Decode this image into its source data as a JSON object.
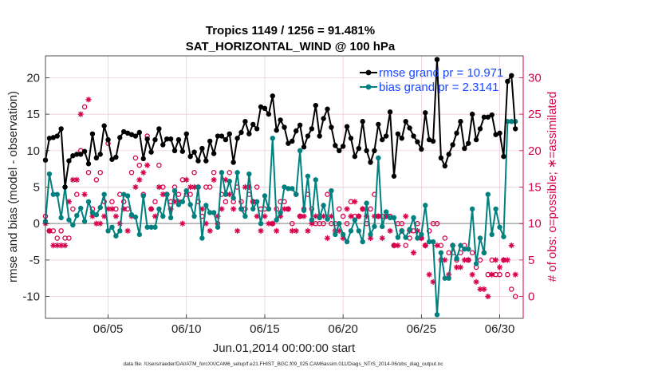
{
  "chart_data": {
    "type": "line",
    "title": "Tropics 1149 / 1256 = 91.481%",
    "subtitle": "SAT_HORIZONTAL_WIND @ 100 hPa",
    "xlabel": "Jun.01,2014 00:00:00 start",
    "ylabel": "rmse and bias (model - observation)",
    "y2label": "# of obs: o=possible; ∗=assimilated",
    "footnote": "data file: /Users/raeder/DAI/ATM_forcXX/CAM6_setup/f.e21.FHIST_BGC.f09_025.CAM6assim.011/Diags_NTrS_2014-06/obs_diag_output.nc",
    "xlim": [
      1,
      31.5
    ],
    "ylim": [
      -13,
      23
    ],
    "y2lim": [
      -3,
      33
    ],
    "xticks": [
      5,
      10,
      15,
      20,
      25,
      30
    ],
    "xtick_labels": [
      "06/05",
      "06/10",
      "06/15",
      "06/20",
      "06/25",
      "06/30"
    ],
    "yticks": [
      -10,
      -5,
      0,
      5,
      10,
      15,
      20
    ],
    "ytick_labels": [
      "-10",
      "-5",
      "0",
      "5",
      "10",
      "15",
      "20"
    ],
    "y2ticks": [
      0,
      5,
      10,
      15,
      20,
      25,
      30
    ],
    "y2tick_labels": [
      "0",
      "5",
      "10",
      "15",
      "20",
      "25",
      "30"
    ],
    "grid": true,
    "legend_position": "top-right",
    "colors": {
      "rmse": "#000000",
      "bias": "#00807f",
      "obs": "#d6004d",
      "zero_line": "#b0b0b0",
      "grid": "#e9c6d4",
      "right_axis": "#d6004d",
      "legend_text": "#1a46ff"
    },
    "series": [
      {
        "name": "rmse",
        "label": "rmse grand pr = 10.971",
        "x": [
          1.0,
          1.25,
          1.5,
          1.75,
          2.0,
          2.25,
          2.5,
          2.75,
          3.0,
          3.25,
          3.5,
          3.75,
          4.0,
          4.25,
          4.5,
          4.75,
          5.0,
          5.25,
          5.5,
          5.75,
          6.0,
          6.25,
          6.5,
          6.75,
          7.0,
          7.25,
          7.5,
          7.75,
          8.0,
          8.25,
          8.5,
          8.75,
          9.0,
          9.25,
          9.5,
          9.75,
          10.0,
          10.25,
          10.5,
          10.75,
          11.0,
          11.25,
          11.5,
          11.75,
          12.0,
          12.25,
          12.5,
          12.75,
          13.0,
          13.25,
          13.5,
          13.75,
          14.0,
          14.25,
          14.5,
          14.75,
          15.0,
          15.25,
          15.5,
          15.75,
          16.0,
          16.25,
          16.5,
          16.75,
          17.0,
          17.25,
          17.5,
          17.75,
          18.0,
          18.25,
          18.5,
          18.75,
          19.0,
          19.25,
          19.5,
          19.75,
          20.0,
          20.25,
          20.5,
          20.75,
          21.0,
          21.25,
          21.5,
          21.75,
          22.0,
          22.25,
          22.5,
          22.75,
          23.0,
          23.25,
          23.5,
          23.75,
          24.0,
          24.25,
          24.5,
          24.75,
          25.0,
          25.25,
          25.5,
          25.75,
          26.0,
          26.25,
          26.5,
          26.75,
          27.0,
          27.25,
          27.5,
          27.75,
          28.0,
          28.25,
          28.5,
          28.75,
          29.0,
          29.25,
          29.5,
          29.75,
          30.0,
          30.25,
          30.5,
          30.75,
          31.0
        ],
        "values": [
          8.7,
          11.7,
          11.8,
          12.0,
          13.0,
          5.0,
          8.6,
          9.3,
          9.5,
          9.5,
          9.9,
          8.2,
          12.3,
          9.0,
          9.5,
          13.4,
          11.5,
          8.8,
          9.1,
          11.8,
          12.6,
          12.4,
          12.2,
          12.0,
          12.5,
          8.9,
          11.6,
          9.8,
          11.5,
          13.0,
          10.8,
          11.6,
          11.6,
          10.0,
          11.5,
          9.9,
          12.3,
          9.2,
          9.8,
          8.6,
          10.3,
          8.6,
          11.3,
          9.6,
          12.0,
          12.0,
          11.5,
          12.3,
          8.4,
          11.7,
          12.5,
          14.0,
          12.3,
          13.6,
          13.0,
          16.0,
          15.8,
          15.0,
          17.5,
          12.8,
          14.2,
          13.2,
          11.0,
          11.3,
          12.7,
          13.5,
          10.5,
          12.0,
          13.0,
          16.2,
          12.0,
          14.4,
          15.7,
          13.2,
          10.7,
          10.0,
          10.6,
          13.3,
          11.7,
          9.2,
          10.3,
          14.0,
          10.0,
          8.4,
          10.0,
          13.6,
          11.5,
          12.0,
          15.3,
          6.5,
          12.3,
          11.7,
          14.0,
          13.1,
          12.0,
          11.2,
          10.2,
          15.2,
          11.5,
          11.3,
          22.5,
          9.0,
          7.9,
          9.5,
          10.8,
          12.4,
          14.0,
          10.3,
          11.0,
          15.0,
          11.5,
          13.0,
          14.6,
          14.6,
          14.9,
          12.2,
          12.4,
          9.2,
          19.5,
          20.3,
          13.0
        ],
        "drawn_count": 120
      },
      {
        "name": "bias",
        "label": "bias grand pr = 2.3141",
        "x": [
          1.0,
          1.25,
          1.5,
          1.75,
          2.0,
          2.25,
          2.5,
          2.75,
          3.0,
          3.25,
          3.5,
          3.75,
          4.0,
          4.25,
          4.5,
          4.75,
          5.0,
          5.25,
          5.5,
          5.75,
          6.0,
          6.25,
          6.5,
          6.75,
          7.0,
          7.25,
          7.5,
          7.75,
          8.0,
          8.25,
          8.5,
          8.75,
          9.0,
          9.25,
          9.5,
          9.75,
          10.0,
          10.25,
          10.5,
          10.75,
          11.0,
          11.25,
          11.5,
          11.75,
          12.0,
          12.25,
          12.5,
          12.75,
          13.0,
          13.25,
          13.5,
          13.75,
          14.0,
          14.25,
          14.5,
          14.75,
          15.0,
          15.25,
          15.5,
          15.75,
          16.0,
          16.25,
          16.5,
          16.75,
          17.0,
          17.25,
          17.5,
          17.75,
          18.0,
          18.25,
          18.5,
          18.75,
          19.0,
          19.25,
          19.5,
          19.75,
          20.0,
          20.25,
          20.5,
          20.75,
          21.0,
          21.25,
          21.5,
          21.75,
          22.0,
          22.25,
          22.5,
          22.75,
          23.0,
          23.25,
          23.5,
          23.75,
          24.0,
          24.25,
          24.5,
          24.75,
          25.0,
          25.25,
          25.5,
          25.75,
          26.0,
          26.25,
          26.5,
          26.75,
          27.0,
          27.25,
          27.5,
          27.75,
          28.0,
          28.25,
          28.5,
          28.75,
          29.0,
          29.25,
          29.5,
          29.75,
          30.0,
          30.25,
          30.5,
          30.75,
          31.0
        ],
        "values": [
          0.3,
          6.8,
          4.0,
          4.0,
          0.8,
          5.0,
          0.5,
          -0.2,
          1.1,
          2.1,
          0.3,
          3.0,
          1.5,
          1.2,
          2.2,
          4.0,
          -1.0,
          -0.5,
          -1.7,
          -1.0,
          4.0,
          3.8,
          1.2,
          0.9,
          -1.5,
          3.8,
          -0.5,
          -0.5,
          -0.5,
          2.0,
          1.0,
          4.0,
          0.8,
          4.5,
          2.6,
          3.0,
          4.5,
          2.6,
          1.0,
          5.0,
          -2.0,
          2.5,
          1.5,
          1.5,
          -0.5,
          7.0,
          4.0,
          5.8,
          3.5,
          7.0,
          2.0,
          1.0,
          6.8,
          2.0,
          3.0,
          0.0,
          3.8,
          2.0,
          11.7,
          0.5,
          1.5,
          5.0,
          4.8,
          4.8,
          4.0,
          10.0,
          1.8,
          6.5,
          0.5,
          6.0,
          0.8,
          2.5,
          0.6,
          4.5,
          -1.5,
          0.0,
          -1.5,
          -2.5,
          -1.0,
          0.5,
          -1.0,
          -2.5,
          2.8,
          -1.5,
          -0.4,
          9.0,
          -0.4,
          1.6,
          0.8,
          0.8,
          -1.9,
          -1.0,
          -1.9,
          -0.8,
          0.8,
          -2.0,
          -1.5,
          2.5,
          -2.5,
          -2.5,
          -12.5,
          -4.0,
          -7.5,
          -7.5,
          -3.0,
          -4.8,
          -3.0,
          -3.5,
          -3.5,
          2.0,
          -5.5,
          -2.0,
          -4.0,
          4.0,
          -1.5,
          2.0,
          -0.5,
          -1.8,
          14.0,
          14.0,
          14.0
        ],
        "drawn_count": 118
      }
    ],
    "obs_possible": {
      "x": [
        1.0,
        1.25,
        1.5,
        1.75,
        2.0,
        2.25,
        2.5,
        2.75,
        3.0,
        3.25,
        3.5,
        3.75,
        4.0,
        4.25,
        4.5,
        4.75,
        5.0,
        5.25,
        5.5,
        5.75,
        6.0,
        6.25,
        6.5,
        6.75,
        7.0,
        7.25,
        7.5,
        7.75,
        8.0,
        8.25,
        8.5,
        8.75,
        9.0,
        9.25,
        9.5,
        9.75,
        10.0,
        10.25,
        10.5,
        10.75,
        11.0,
        11.25,
        11.5,
        11.75,
        12.0,
        12.25,
        12.5,
        12.75,
        13.0,
        13.25,
        13.5,
        13.75,
        14.0,
        14.25,
        14.5,
        14.75,
        15.0,
        15.25,
        15.5,
        15.75,
        16.0,
        16.25,
        16.5,
        16.75,
        17.0,
        17.25,
        17.5,
        17.75,
        18.0,
        18.25,
        18.5,
        18.75,
        19.0,
        19.25,
        19.5,
        19.75,
        20.0,
        20.25,
        20.5,
        20.75,
        21.0,
        21.25,
        21.5,
        21.75,
        22.0,
        22.25,
        22.5,
        22.75,
        23.0,
        23.25,
        23.5,
        23.75,
        24.0,
        24.25,
        24.5,
        24.75,
        25.0,
        25.25,
        25.5,
        25.75,
        26.0,
        26.25,
        26.5,
        26.75,
        27.0,
        27.25,
        27.5,
        27.75,
        28.0,
        28.25,
        28.5,
        28.75,
        29.0,
        29.25,
        29.5,
        29.75,
        30.0,
        30.25,
        30.5,
        30.75,
        31.0
      ],
      "values": [
        11,
        9,
        9,
        8,
        9,
        8,
        8,
        12,
        14,
        20,
        26,
        17,
        12,
        16,
        17,
        13,
        21,
        13,
        12,
        14,
        13,
        12,
        17,
        19,
        18,
        14,
        22,
        12,
        13,
        18,
        15,
        14,
        13,
        15,
        14,
        16,
        14,
        14,
        17,
        13,
        11,
        15,
        15,
        17,
        10,
        14,
        13,
        17,
        13,
        15,
        13,
        12,
        14,
        13,
        15,
        12,
        12,
        12,
        10,
        12,
        13,
        13,
        12,
        10,
        14,
        11,
        12,
        14,
        12,
        10,
        10,
        10,
        14,
        10,
        10,
        12,
        11,
        10,
        13,
        11,
        11,
        12,
        10,
        12,
        14,
        11,
        11,
        11,
        11,
        7,
        10,
        10,
        7,
        8,
        9,
        10,
        8,
        7,
        9,
        10,
        10,
        7,
        8,
        6,
        6,
        5,
        6,
        7,
        5,
        6,
        4,
        5,
        6,
        3,
        5,
        3,
        3,
        5,
        3,
        1,
        0
      ]
    },
    "obs_assimilated": {
      "x": [
        1.0,
        1.25,
        1.5,
        1.75,
        2.0,
        2.25,
        2.5,
        2.75,
        3.0,
        3.25,
        3.5,
        3.75,
        4.0,
        4.25,
        4.5,
        4.75,
        5.0,
        5.25,
        5.5,
        5.75,
        6.0,
        6.25,
        6.5,
        6.75,
        7.0,
        7.25,
        7.5,
        7.75,
        8.0,
        8.25,
        8.5,
        8.75,
        9.0,
        9.25,
        9.5,
        9.75,
        10.0,
        10.25,
        10.5,
        10.75,
        11.0,
        11.25,
        11.5,
        11.75,
        12.0,
        12.25,
        12.5,
        12.75,
        13.0,
        13.25,
        13.5,
        13.75,
        14.0,
        14.25,
        14.5,
        14.75,
        15.0,
        15.25,
        15.5,
        15.75,
        16.0,
        16.25,
        16.5,
        16.75,
        17.0,
        17.25,
        17.5,
        17.75,
        18.0,
        18.25,
        18.5,
        18.75,
        19.0,
        19.25,
        19.5,
        19.75,
        20.0,
        20.25,
        20.5,
        20.75,
        21.0,
        21.25,
        21.5,
        21.75,
        22.0,
        22.25,
        22.5,
        22.75,
        23.0,
        23.25,
        23.5,
        23.75,
        24.0,
        24.25,
        24.5,
        24.75,
        25.0,
        25.25,
        25.5,
        25.75,
        26.0,
        26.25,
        26.5,
        26.75,
        27.0,
        27.25,
        27.5,
        27.75,
        28.0,
        28.25,
        28.5,
        28.75,
        29.0,
        29.25,
        29.5,
        29.75,
        30.0,
        30.25,
        30.5,
        30.75,
        31.0
      ],
      "values": [
        10,
        9,
        7,
        7,
        7,
        7,
        13,
        16,
        16,
        25,
        14,
        27,
        11,
        10,
        10,
        11,
        12,
        12,
        11,
        10,
        12,
        9,
        11,
        15,
        16,
        17,
        18,
        12,
        11,
        15,
        14,
        14,
        12,
        13,
        13,
        10,
        16,
        15,
        15,
        15,
        12,
        10,
        9,
        16,
        11,
        12,
        16,
        14,
        12,
        9,
        12,
        15,
        15,
        13,
        11,
        9,
        11,
        10,
        10,
        9,
        11,
        12,
        12,
        9,
        9,
        11,
        11,
        9,
        10,
        11,
        11,
        11,
        8,
        11,
        9,
        9,
        8,
        12,
        11,
        13,
        11,
        12,
        11,
        8,
        11,
        11,
        8,
        11,
        9,
        7,
        7,
        9,
        11,
        9,
        6,
        9,
        8,
        7,
        3,
        2,
        7,
        5,
        5,
        3,
        7,
        4,
        4,
        5,
        5,
        3,
        2,
        1,
        1,
        0,
        3,
        5,
        4,
        5,
        5,
        7,
        3
      ]
    }
  }
}
